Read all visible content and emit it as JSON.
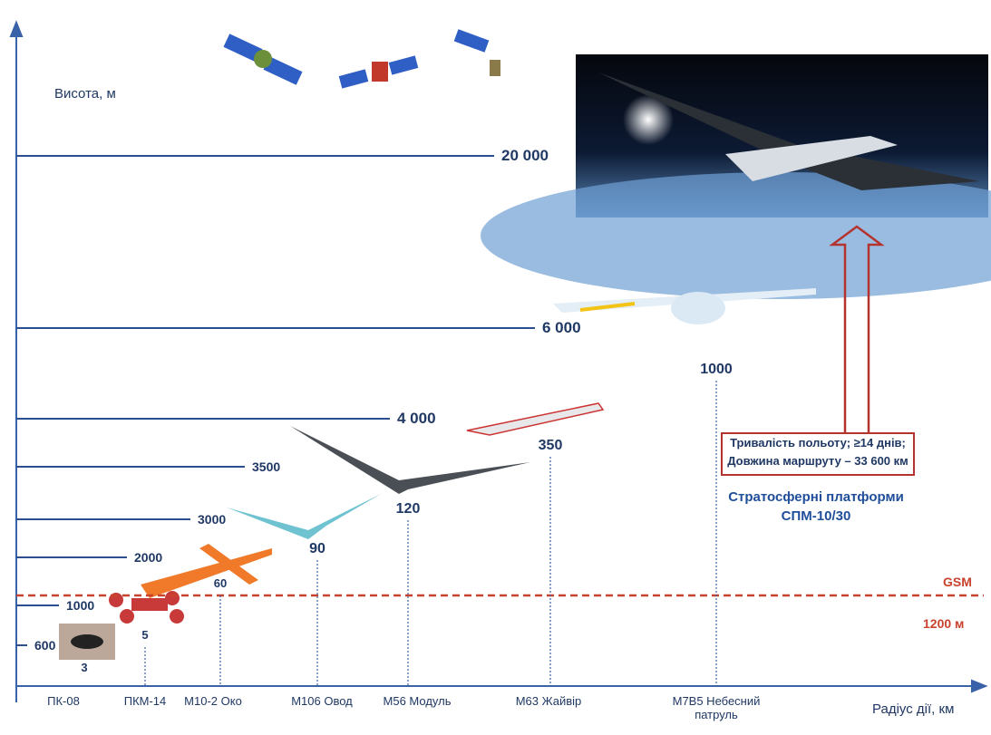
{
  "axes": {
    "y_label": "Висота, м",
    "x_label": "Радіус дії, км"
  },
  "altitudes": [
    "20 000",
    "6 000",
    "4 000",
    "3500",
    "3000",
    "2000",
    "1000",
    "600"
  ],
  "drones": [
    {
      "name": "ПК-08",
      "radius": "3"
    },
    {
      "name": "ПКМ-14",
      "radius": "5"
    },
    {
      "name": "М10-2 Око",
      "radius": "60"
    },
    {
      "name": "М106 Овод",
      "radius": "90"
    },
    {
      "name": "М56 Модуль",
      "radius": "120"
    },
    {
      "name": "М63 Жайвір",
      "radius": "350"
    },
    {
      "name": "М7В5 Небесний патруль",
      "radius": "1000"
    }
  ],
  "gsm": {
    "label": "GSM",
    "altitude": "1200 м"
  },
  "callout": {
    "lines": [
      "Тривалість польоту;  ≥14 днів;",
      "Довжина маршруту – 33 600 км"
    ]
  },
  "platform": {
    "lines": [
      "Стратосферні платформи",
      "СПМ-10/30"
    ]
  }
}
